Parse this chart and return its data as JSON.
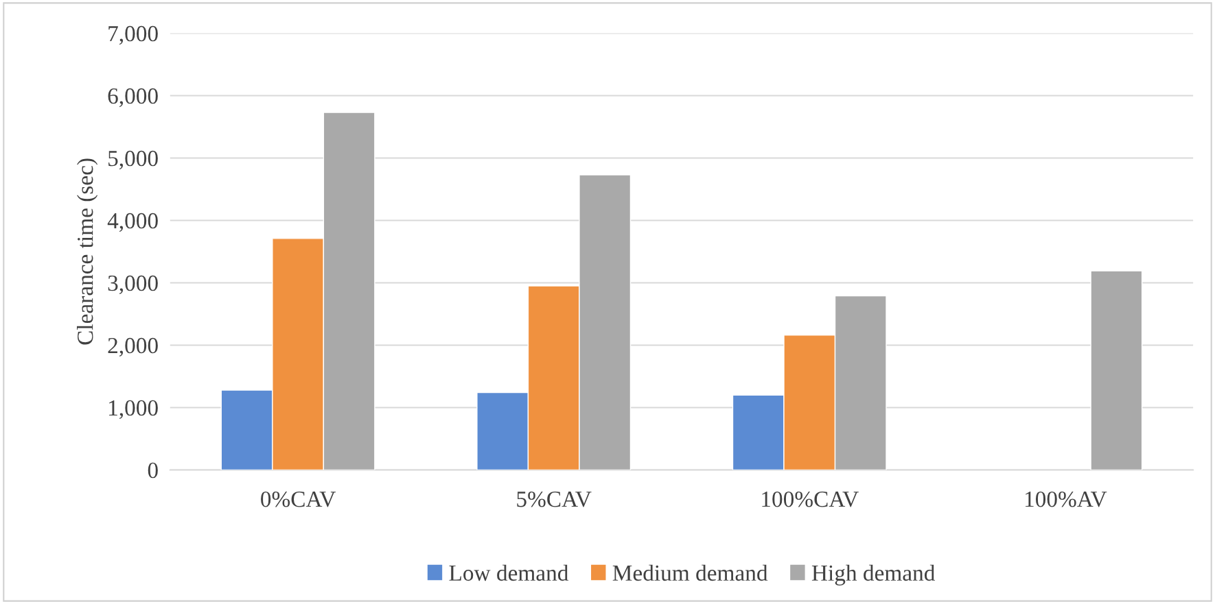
{
  "chart_data": {
    "type": "bar",
    "ylabel": "Clearance time (sec)",
    "categories": [
      "0%CAV",
      "5%CAV",
      "100%CAV",
      "100%AV"
    ],
    "series": [
      {
        "name": "Low demand",
        "color": "#5b8bd3",
        "values": [
          1280,
          1240,
          1200,
          null
        ]
      },
      {
        "name": "Medium demand",
        "color": "#f0913f",
        "values": [
          3710,
          2950,
          2160,
          null
        ]
      },
      {
        "name": "High demand",
        "color": "#a9a9a9",
        "values": [
          5730,
          4730,
          2790,
          3190
        ]
      }
    ],
    "ylim": [
      0,
      7000
    ],
    "yticks": [
      {
        "value": 0,
        "label": "0"
      },
      {
        "value": 1000,
        "label": "1,000"
      },
      {
        "value": 2000,
        "label": "2,000"
      },
      {
        "value": 3000,
        "label": "3,000"
      },
      {
        "value": 4000,
        "label": "4,000"
      },
      {
        "value": 5000,
        "label": "5,000"
      },
      {
        "value": 6000,
        "label": "6,000"
      },
      {
        "value": 7000,
        "label": "7,000"
      }
    ],
    "grid": "y",
    "legend": "bottom"
  }
}
